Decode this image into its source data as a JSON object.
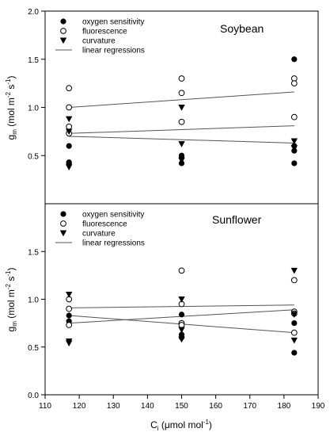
{
  "chart_data": [
    {
      "type": "scatter",
      "title": "Soybean",
      "ylabel_main": "g",
      "ylabel_sub": "m",
      "ylabel_units": "(mol m",
      "ylabel_exp1": "-2",
      "ylabel_mid": " s",
      "ylabel_exp2": "-1",
      "ylabel_close": ")",
      "ylim": [
        0,
        2.0
      ],
      "yticks": [
        "0.5",
        "1.0",
        "1.5",
        "2.0"
      ],
      "ytick_values": [
        0.5,
        1.0,
        1.5,
        2.0
      ],
      "legend_position": "top-left",
      "legend": [
        "oxygen sensitivity",
        "fluorescence",
        "curvature",
        "linear regressions"
      ],
      "series": [
        {
          "name": "oxygen sensitivity",
          "marker": "filled-circle",
          "points": [
            [
              117,
              0.6
            ],
            [
              117,
              0.43
            ],
            [
              117,
              0.42
            ],
            [
              150,
              0.5
            ],
            [
              150,
              0.48
            ],
            [
              150,
              0.42
            ],
            [
              183,
              1.5
            ],
            [
              183,
              0.55
            ],
            [
              183,
              0.42
            ],
            [
              183,
              0.6
            ]
          ]
        },
        {
          "name": "fluorescence",
          "marker": "open-circle",
          "points": [
            [
              117,
              1.2
            ],
            [
              117,
              1.0
            ],
            [
              117,
              0.8
            ],
            [
              117,
              0.73
            ],
            [
              150,
              1.3
            ],
            [
              150,
              1.15
            ],
            [
              150,
              0.85
            ],
            [
              183,
              1.3
            ],
            [
              183,
              1.25
            ],
            [
              183,
              0.9
            ]
          ]
        },
        {
          "name": "curvature",
          "marker": "filled-triangle-down",
          "points": [
            [
              117,
              0.88
            ],
            [
              117,
              0.75
            ],
            [
              117,
              0.38
            ],
            [
              150,
              1.0
            ],
            [
              150,
              0.62
            ],
            [
              150,
              0.45
            ],
            [
              183,
              0.65
            ],
            [
              183,
              0.58
            ]
          ]
        }
      ],
      "regressions": [
        {
          "x": [
            117,
            183
          ],
          "y": [
            1.0,
            1.16
          ]
        },
        {
          "x": [
            117,
            183
          ],
          "y": [
            0.73,
            0.81
          ]
        },
        {
          "x": [
            117,
            183
          ],
          "y": [
            0.7,
            0.63
          ]
        }
      ]
    },
    {
      "type": "scatter",
      "title": "Sunflower",
      "ylabel_main": "g",
      "ylabel_sub": "m",
      "ylabel_units": "(mol m",
      "ylabel_exp1": "-2",
      "ylabel_mid": " s",
      "ylabel_exp2": "-1",
      "ylabel_close": ")",
      "xlabel_main": "C",
      "xlabel_sub": "i",
      "xlabel_units": " (μmol mol",
      "xlabel_exp": "-1",
      "xlabel_close": ")",
      "ylim": [
        0,
        2.0
      ],
      "yticks": [
        "0.0",
        "0.5",
        "1.0",
        "1.5"
      ],
      "ytick_values": [
        0.0,
        0.5,
        1.0,
        1.5
      ],
      "xlim": [
        110,
        190
      ],
      "xticks": [
        "110",
        "120",
        "130",
        "140",
        "150",
        "160",
        "170",
        "180",
        "190"
      ],
      "xtick_values": [
        110,
        120,
        130,
        140,
        150,
        160,
        170,
        180,
        190
      ],
      "legend_position": "top-left",
      "legend": [
        "oxygen sensitivity",
        "fluorescence",
        "curvature",
        "linear regressions"
      ],
      "series": [
        {
          "name": "oxygen sensitivity",
          "marker": "filled-circle",
          "points": [
            [
              117,
              0.83
            ],
            [
              117,
              0.77
            ],
            [
              150,
              0.84
            ],
            [
              150,
              0.73
            ],
            [
              150,
              0.63
            ],
            [
              150,
              0.6
            ],
            [
              183,
              0.85
            ],
            [
              183,
              0.75
            ],
            [
              183,
              0.44
            ]
          ]
        },
        {
          "name": "fluorescence",
          "marker": "open-circle",
          "points": [
            [
              117,
              1.0
            ],
            [
              117,
              0.9
            ],
            [
              117,
              0.73
            ],
            [
              150,
              1.3
            ],
            [
              150,
              0.95
            ],
            [
              150,
              0.75
            ],
            [
              150,
              0.73
            ],
            [
              183,
              1.2
            ],
            [
              183,
              0.87
            ],
            [
              183,
              0.85
            ],
            [
              183,
              0.65
            ]
          ]
        },
        {
          "name": "curvature",
          "marker": "filled-triangle-down",
          "points": [
            [
              117,
              1.05
            ],
            [
              117,
              0.56
            ],
            [
              117,
              0.54
            ],
            [
              150,
              1.0
            ],
            [
              150,
              0.68
            ],
            [
              150,
              0.58
            ],
            [
              183,
              1.3
            ],
            [
              183,
              0.84
            ],
            [
              183,
              0.57
            ]
          ]
        }
      ],
      "regressions": [
        {
          "x": [
            117,
            183
          ],
          "y": [
            0.91,
            0.94
          ]
        },
        {
          "x": [
            117,
            183
          ],
          "y": [
            0.75,
            0.89
          ]
        },
        {
          "x": [
            117,
            183
          ],
          "y": [
            0.83,
            0.65
          ]
        }
      ]
    }
  ]
}
